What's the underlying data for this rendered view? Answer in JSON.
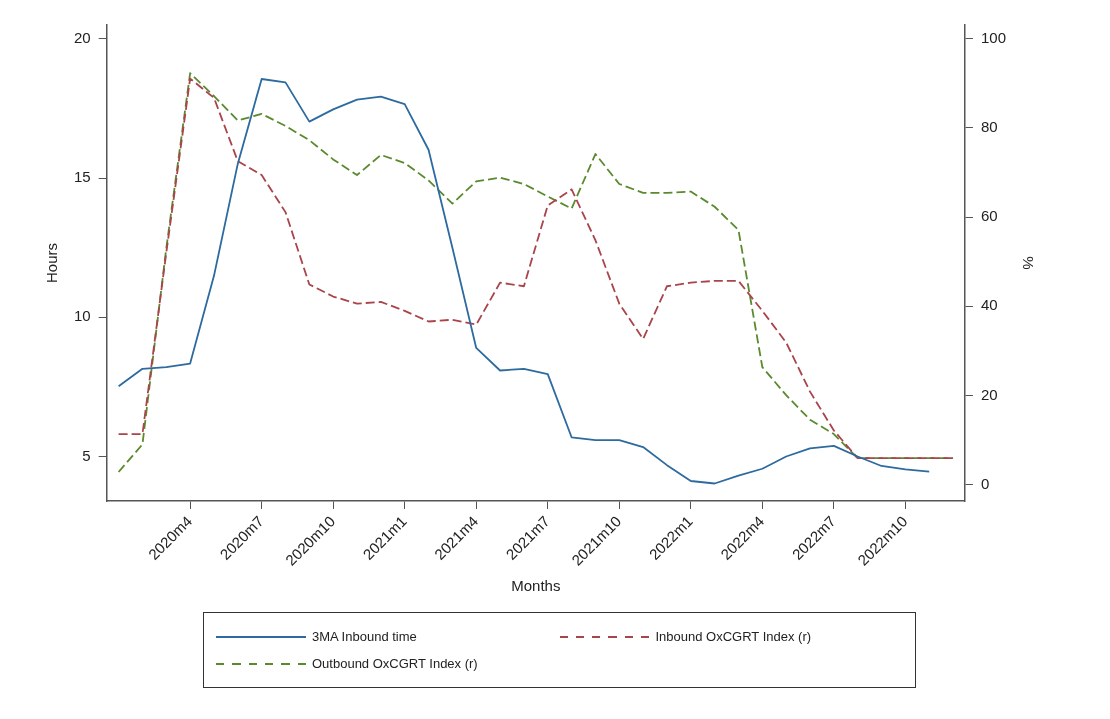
{
  "chart_data": {
    "type": "line",
    "xlabel": "Months",
    "ylabel": "Hours",
    "y2label": "%",
    "categories": [
      null,
      null,
      null,
      "2020m4",
      null,
      null,
      "2020m7",
      null,
      null,
      "2020m10",
      null,
      null,
      "2021m1",
      null,
      null,
      "2021m4",
      null,
      null,
      "2021m7",
      null,
      null,
      "2021m10",
      null,
      null,
      "2022m1",
      null,
      null,
      "2022m4",
      null,
      null,
      "2022m7",
      null,
      null,
      "2022m10",
      null,
      null
    ],
    "ylim": [
      3.4,
      20.5
    ],
    "yticks": [
      5,
      10,
      15,
      20
    ],
    "y2lim": [
      -3.6,
      103
    ],
    "y2ticks": [
      0,
      20,
      40,
      60,
      80,
      100
    ],
    "grid": false,
    "legend": "bottom",
    "marker": "none",
    "series": [
      {
        "name": "3MA Inbound time",
        "color": "#2d6a9f",
        "line_style": "solid",
        "values": [
          7.52,
          8.15,
          8.21,
          8.34,
          11.49,
          15.52,
          18.56,
          18.44,
          17.03,
          17.47,
          17.82,
          17.93,
          17.66,
          16.02,
          12.5,
          8.9,
          8.09,
          8.15,
          7.96,
          5.69,
          5.59,
          5.59,
          5.34,
          4.69,
          4.12,
          4.03,
          4.31,
          4.56,
          5.0,
          5.29,
          5.38,
          5.0,
          4.66,
          4.54,
          4.46,
          null
        ]
      },
      {
        "name": "Inbound OxCGRT Index (r)",
        "color": "#a9444a",
        "line_style": "dashed",
        "axis": "y2",
        "values": [
          11.4,
          11.4,
          52,
          91,
          86.7,
          72.5,
          69.4,
          61.1,
          44.9,
          42.2,
          40.6,
          41,
          39,
          36.6,
          37,
          35.9,
          45.3,
          44.5,
          62.6,
          66.2,
          54.8,
          40.6,
          32.7,
          44.5,
          45.3,
          45.7,
          45.7,
          39,
          31.9,
          20.9,
          12.2,
          6,
          6,
          6,
          6,
          6
        ]
      },
      {
        "name": "Outbound OxCGRT Index (r)",
        "color": "#5a8a2e",
        "line_style": "dashed",
        "axis": "y2",
        "values": [
          2.9,
          9.1,
          53,
          92.2,
          87.1,
          81.6,
          83.1,
          80.4,
          77.2,
          72.9,
          69.4,
          73.9,
          72.1,
          68.2,
          63,
          68,
          68.8,
          67.4,
          64.6,
          61.9,
          74.1,
          67.4,
          65.4,
          65.4,
          65.7,
          62.3,
          57.1,
          26.4,
          20.1,
          14.6,
          11.4,
          6,
          6,
          6,
          6,
          6
        ]
      }
    ]
  }
}
